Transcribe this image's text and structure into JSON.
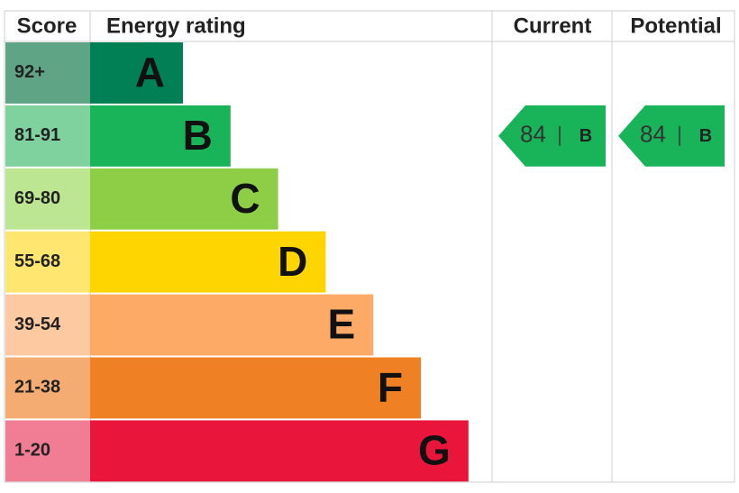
{
  "header": {
    "score": "Score",
    "energy_rating": "Energy rating",
    "current": "Current",
    "potential": "Potential"
  },
  "bands": [
    {
      "range": "92+",
      "letter": "A",
      "color": "#008054",
      "tint": "#5fa485"
    },
    {
      "range": "81-91",
      "letter": "B",
      "color": "#19b459",
      "tint": "#7fd19e"
    },
    {
      "range": "69-80",
      "letter": "C",
      "color": "#8dce46",
      "tint": "#bce691"
    },
    {
      "range": "55-68",
      "letter": "D",
      "color": "#ffd500",
      "tint": "#ffe670"
    },
    {
      "range": "39-54",
      "letter": "E",
      "color": "#fcaa65",
      "tint": "#fdc9a0"
    },
    {
      "range": "21-38",
      "letter": "F",
      "color": "#ef8023",
      "tint": "#f4ac72"
    },
    {
      "range": "1-20",
      "letter": "G",
      "color": "#e9153b",
      "tint": "#f17d94"
    }
  ],
  "current": {
    "score": 84,
    "letter": "B"
  },
  "potential": {
    "score": 84,
    "letter": "B"
  }
}
